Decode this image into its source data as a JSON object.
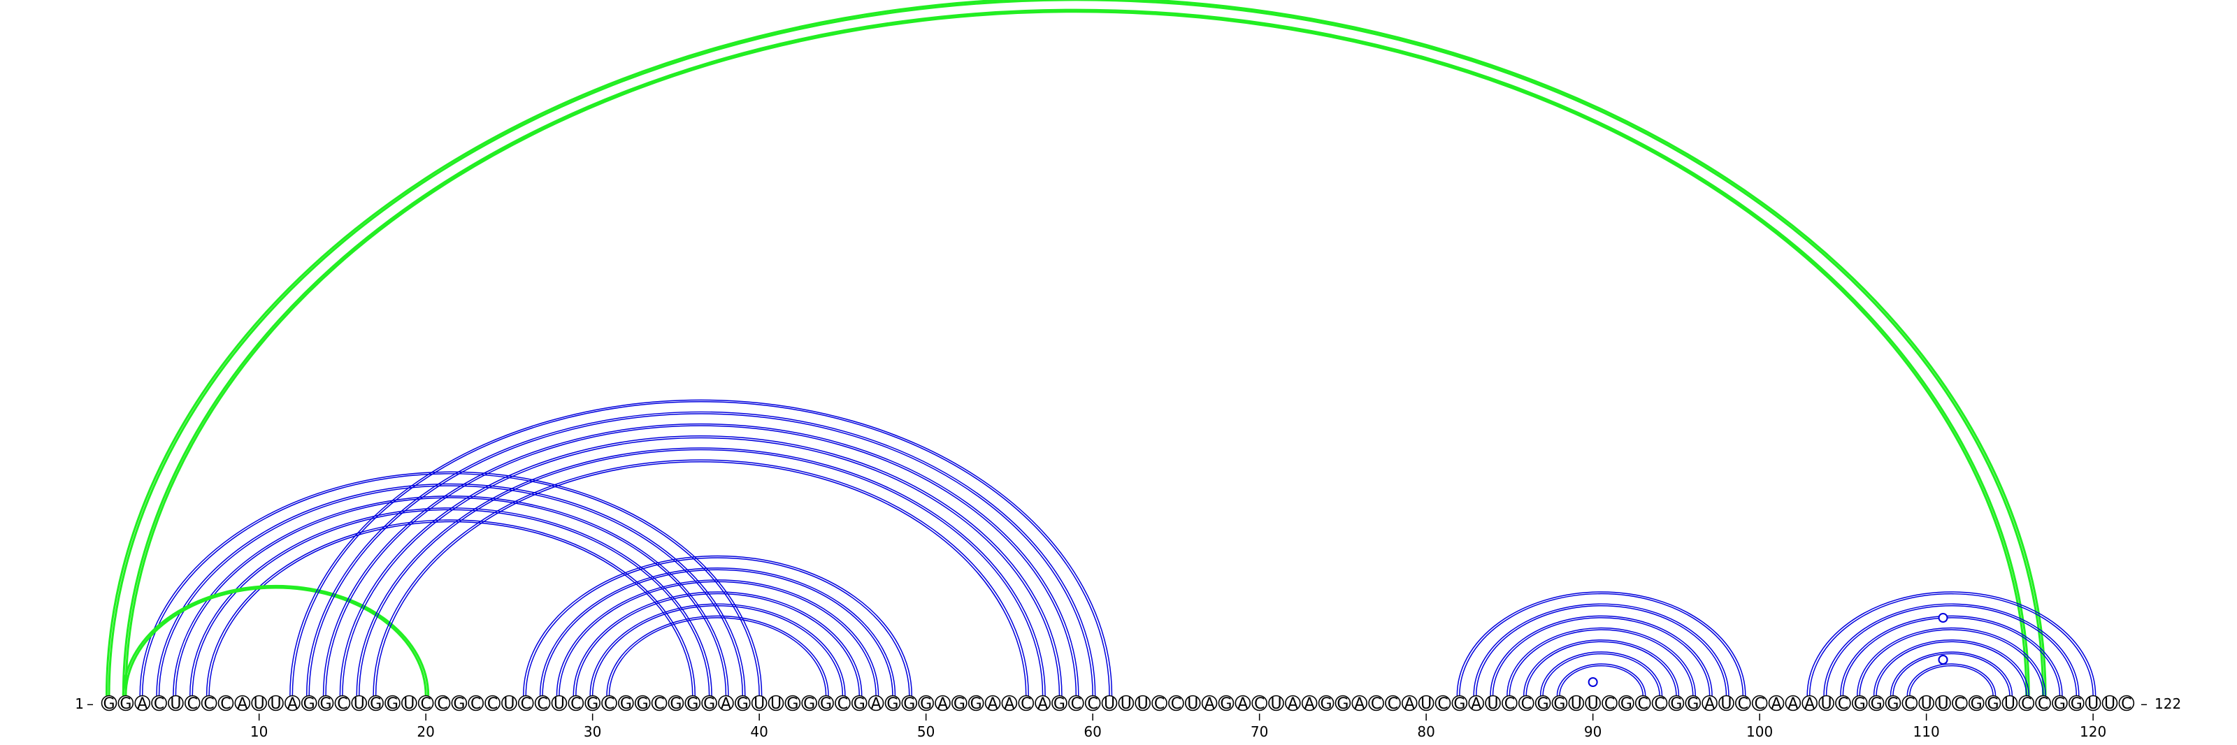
{
  "diagram": {
    "sequence": "GGACUCCCAUUAGGCUGGUCCGCCUCCUCGCGGCGGGAGUUGGGCGAGGGAGGAACAGCCUUUCCUAGACUAAGGACCAUCGAUCCGGUUCGCCGGAUCCAAAUCGGGCUUCGGUCCGGUUC",
    "start_label": "1",
    "end_label": "122",
    "tick_labels": [
      "10",
      "20",
      "30",
      "40",
      "50",
      "60",
      "70",
      "80",
      "90",
      "100",
      "110",
      "120"
    ],
    "colors": {
      "canonical_arc": "#0000dd",
      "pseudoknot_arc": "#22ee22",
      "text": "#000000"
    },
    "arc_groups": [
      {
        "name": "stem-3-40",
        "color": "blue",
        "pairs": [
          [
            3,
            40
          ],
          [
            4,
            39
          ],
          [
            5,
            38
          ],
          [
            6,
            37
          ],
          [
            7,
            36
          ]
        ]
      },
      {
        "name": "stem-2-116",
        "color": "green",
        "pairs": [
          [
            1,
            117
          ],
          [
            2,
            116
          ]
        ]
      },
      {
        "name": "stem-1-20",
        "color": "green",
        "pairs": [
          [
            2,
            20
          ]
        ]
      },
      {
        "name": "stem-12-61",
        "color": "blue",
        "pairs": [
          [
            12,
            61
          ],
          [
            13,
            60
          ],
          [
            14,
            59
          ],
          [
            15,
            58
          ],
          [
            16,
            57
          ],
          [
            17,
            56
          ]
        ]
      },
      {
        "name": "stem-26-49",
        "color": "blue",
        "pairs": [
          [
            26,
            49
          ],
          [
            27,
            48
          ],
          [
            28,
            47
          ],
          [
            29,
            46
          ],
          [
            30,
            45
          ],
          [
            31,
            44
          ]
        ]
      },
      {
        "name": "stem-82-99",
        "color": "blue",
        "pairs": [
          [
            82,
            99
          ],
          [
            83,
            98
          ],
          [
            84,
            97
          ],
          [
            85,
            96
          ],
          [
            86,
            95
          ],
          [
            87,
            94
          ],
          [
            88,
            93
          ]
        ]
      },
      {
        "name": "stem-103-120",
        "color": "blue",
        "pairs": [
          [
            103,
            120
          ],
          [
            104,
            119
          ],
          [
            105,
            118
          ],
          [
            106,
            117
          ],
          [
            107,
            116
          ],
          [
            108,
            115
          ],
          [
            109,
            114
          ]
        ]
      }
    ],
    "marker_circles": [
      90,
      111,
      111,
      111
    ]
  }
}
